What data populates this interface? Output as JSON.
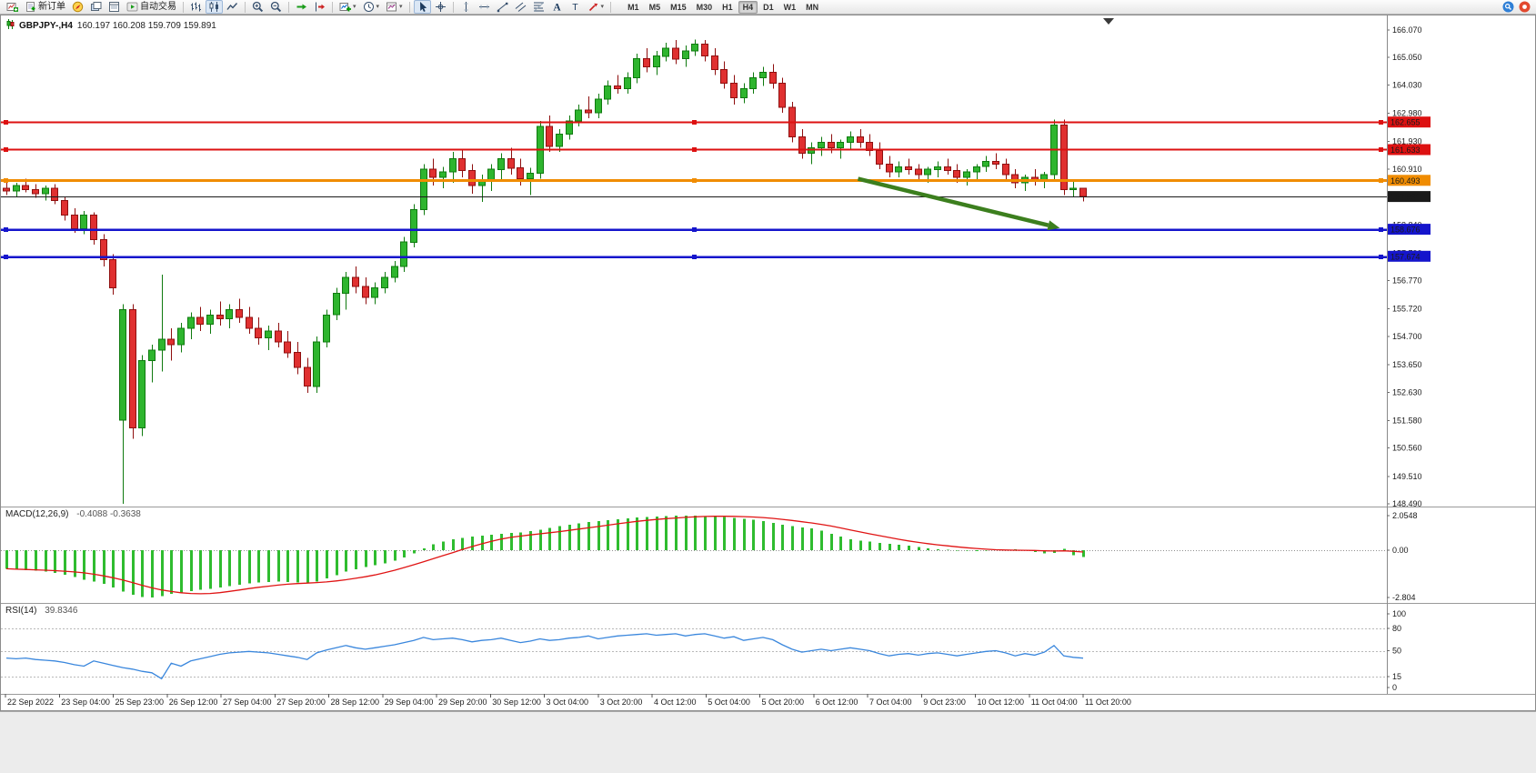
{
  "toolbar": {
    "items": [
      {
        "name": "new-chart-button",
        "icon": "new-chart"
      },
      {
        "name": "new-order-button",
        "icon": "new-order",
        "label": "新订单"
      },
      {
        "name": "metaeditor-button",
        "icon": "compass"
      },
      {
        "name": "profiles-button",
        "icon": "profiles"
      },
      {
        "name": "data-window-button",
        "icon": "data-window"
      },
      {
        "name": "autotrading-button",
        "icon": "autotrading",
        "label": "自动交易"
      },
      {
        "sep": true
      },
      {
        "name": "bar-chart-button",
        "icon": "bars"
      },
      {
        "name": "candlestick-chart-button",
        "icon": "candles",
        "active": true
      },
      {
        "name": "line-chart-button",
        "icon": "line"
      },
      {
        "sep": true
      },
      {
        "name": "zoom-in-button",
        "icon": "zoom-in"
      },
      {
        "name": "zoom-out-button",
        "icon": "zoom-out"
      },
      {
        "sep": true
      },
      {
        "name": "auto-scroll-button",
        "icon": "auto-scroll"
      },
      {
        "name": "chart-shift-button",
        "icon": "chart-shift"
      },
      {
        "sep": true
      },
      {
        "name": "indicators-button",
        "icon": "indicators",
        "caret": true
      },
      {
        "name": "periods-button",
        "icon": "clock",
        "caret": true
      },
      {
        "name": "templates-button",
        "icon": "template",
        "caret": true
      },
      {
        "sep": true
      },
      {
        "name": "cursor-button",
        "icon": "cursor",
        "active": true
      },
      {
        "name": "crosshair-button",
        "icon": "crosshair"
      },
      {
        "sep": true
      },
      {
        "name": "vertical-line-button",
        "icon": "vline"
      },
      {
        "name": "horizontal-line-button",
        "icon": "hline"
      },
      {
        "name": "trendline-button",
        "icon": "trendline"
      },
      {
        "name": "channel-button",
        "icon": "channel"
      },
      {
        "name": "fibonacci-button",
        "icon": "fibo"
      },
      {
        "name": "text-button",
        "icon": "text"
      },
      {
        "name": "label-button",
        "icon": "label"
      },
      {
        "name": "arrows-button",
        "icon": "arrows",
        "caret": true
      },
      {
        "sep": true
      }
    ],
    "timeframes": [
      "M1",
      "M5",
      "M15",
      "M30",
      "H1",
      "H4",
      "D1",
      "W1",
      "MN"
    ],
    "active_timeframe": "H4",
    "right_icons": [
      {
        "name": "search-icon",
        "icon": "search"
      },
      {
        "name": "notifications-icon",
        "icon": "alert"
      }
    ]
  },
  "chart_data": {
    "type": "candlestick",
    "title": "GBPJPY-,H4",
    "ohlc_text": "160.197 160.208 159.709 159.891",
    "current": {
      "open": 160.197,
      "high": 160.208,
      "low": 159.709,
      "close": 159.891
    },
    "colors": {
      "up_fill": "#2eb52e",
      "up_border": "#0f7a0f",
      "down_fill": "#e03030",
      "down_border": "#8f0f0f",
      "arrow": "#3c7f1e"
    },
    "price_axis": {
      "min": 148.49,
      "max": 166.07,
      "labels": [
        "166.070",
        "165.050",
        "164.030",
        "162.980",
        "161.930",
        "160.910",
        "159.860",
        "158.840",
        "157.790",
        "156.770",
        "155.720",
        "154.700",
        "153.650",
        "152.630",
        "151.580",
        "150.560",
        "149.510",
        "148.490"
      ]
    },
    "time_labels": [
      "22 Sep 2022",
      "23 Sep 04:00",
      "25 Sep 23:00",
      "26 Sep 12:00",
      "27 Sep 04:00",
      "27 Sep 20:00",
      "28 Sep 12:00",
      "29 Sep 04:00",
      "29 Sep 20:00",
      "30 Sep 12:00",
      "3 Oct 04:00",
      "3 Oct 20:00",
      "4 Oct 12:00",
      "5 Oct 04:00",
      "5 Oct 20:00",
      "6 Oct 12:00",
      "7 Oct 04:00",
      "9 Oct 23:00",
      "10 Oct 12:00",
      "11 Oct 04:00",
      "11 Oct 20:00"
    ],
    "levels": [
      {
        "price": 162.655,
        "label": "162.655",
        "color": "#dd1111",
        "width": 1.6,
        "handles": true
      },
      {
        "price": 161.633,
        "label": "161.633",
        "color": "#dd1111",
        "width": 1.6,
        "handles": true
      },
      {
        "price": 160.493,
        "label": "160.493",
        "color": "#f08c00",
        "width": 3,
        "handles": true
      },
      {
        "price": 158.676,
        "label": "158.676",
        "color": "#1515cc",
        "width": 2.5,
        "handles": true
      },
      {
        "price": 157.674,
        "label": "157.674",
        "color": "#1515cc",
        "width": 2.5,
        "handles": true
      }
    ],
    "current_price_line": {
      "price": 159.891,
      "label": "159.891",
      "color": "#1a1a1a"
    },
    "arrow": {
      "from": {
        "bar": 87.8,
        "price": 160.55
      },
      "to": {
        "bar": 108.6,
        "price": 158.72
      },
      "color": "#3c7f1e"
    },
    "candles": [
      [
        160.2,
        160.45,
        159.95,
        160.1
      ],
      [
        160.1,
        160.4,
        159.9,
        160.3
      ],
      [
        160.3,
        160.55,
        160.05,
        160.15
      ],
      [
        160.15,
        160.35,
        159.85,
        160.0
      ],
      [
        160.0,
        160.3,
        159.75,
        160.2
      ],
      [
        160.2,
        160.35,
        159.6,
        159.75
      ],
      [
        159.75,
        159.9,
        159.0,
        159.2
      ],
      [
        159.2,
        159.45,
        158.55,
        158.7
      ],
      [
        158.7,
        159.35,
        158.5,
        159.2
      ],
      [
        159.2,
        159.3,
        158.1,
        158.3
      ],
      [
        158.3,
        158.5,
        157.3,
        157.55
      ],
      [
        157.55,
        157.75,
        156.25,
        156.5
      ],
      [
        151.6,
        155.9,
        148.49,
        155.7
      ],
      [
        155.7,
        155.9,
        150.9,
        151.3
      ],
      [
        151.3,
        154.0,
        151.0,
        153.8
      ],
      [
        153.8,
        154.4,
        153.0,
        154.2
      ],
      [
        154.2,
        157.0,
        153.4,
        154.6
      ],
      [
        154.6,
        155.0,
        153.8,
        154.4
      ],
      [
        154.4,
        155.2,
        154.1,
        155.0
      ],
      [
        155.0,
        155.6,
        154.6,
        155.4
      ],
      [
        155.4,
        155.8,
        154.9,
        155.15
      ],
      [
        155.15,
        155.7,
        154.8,
        155.5
      ],
      [
        155.5,
        156.0,
        155.1,
        155.35
      ],
      [
        155.35,
        155.9,
        155.0,
        155.7
      ],
      [
        155.7,
        156.1,
        155.2,
        155.4
      ],
      [
        155.4,
        155.8,
        154.8,
        155.0
      ],
      [
        155.0,
        155.4,
        154.4,
        154.65
      ],
      [
        154.65,
        155.1,
        154.2,
        154.9
      ],
      [
        154.9,
        155.2,
        154.3,
        154.5
      ],
      [
        154.5,
        154.9,
        153.9,
        154.1
      ],
      [
        154.1,
        154.5,
        153.3,
        153.55
      ],
      [
        153.55,
        153.9,
        152.6,
        152.85
      ],
      [
        152.85,
        154.7,
        152.6,
        154.5
      ],
      [
        154.5,
        155.7,
        154.3,
        155.5
      ],
      [
        155.5,
        156.5,
        155.3,
        156.3
      ],
      [
        156.3,
        157.1,
        155.7,
        156.9
      ],
      [
        156.9,
        157.3,
        156.3,
        156.55
      ],
      [
        156.55,
        156.9,
        155.9,
        156.15
      ],
      [
        156.15,
        156.7,
        155.9,
        156.5
      ],
      [
        156.5,
        157.1,
        156.3,
        156.9
      ],
      [
        156.9,
        157.5,
        156.7,
        157.3
      ],
      [
        157.3,
        158.4,
        157.1,
        158.2
      ],
      [
        158.2,
        159.6,
        158.0,
        159.4
      ],
      [
        159.4,
        161.1,
        159.2,
        160.9
      ],
      [
        160.9,
        161.3,
        160.3,
        160.6
      ],
      [
        160.6,
        161.0,
        160.2,
        160.8
      ],
      [
        160.8,
        161.55,
        160.4,
        161.3
      ],
      [
        161.3,
        161.6,
        160.6,
        160.85
      ],
      [
        160.85,
        161.1,
        160.0,
        160.3
      ],
      [
        160.3,
        160.7,
        159.7,
        160.5
      ],
      [
        160.5,
        161.1,
        160.1,
        160.9
      ],
      [
        160.9,
        161.5,
        160.5,
        161.3
      ],
      [
        161.3,
        161.7,
        160.7,
        160.95
      ],
      [
        160.95,
        161.3,
        160.3,
        160.55
      ],
      [
        160.55,
        160.95,
        159.95,
        160.75
      ],
      [
        160.75,
        162.7,
        160.55,
        162.5
      ],
      [
        162.5,
        162.9,
        161.55,
        161.75
      ],
      [
        161.75,
        162.4,
        161.55,
        162.2
      ],
      [
        162.2,
        162.9,
        162.0,
        162.7
      ],
      [
        162.7,
        163.3,
        162.5,
        163.1
      ],
      [
        163.1,
        163.6,
        162.8,
        163.0
      ],
      [
        163.0,
        163.7,
        162.8,
        163.5
      ],
      [
        163.5,
        164.2,
        163.3,
        164.0
      ],
      [
        164.0,
        164.4,
        163.7,
        163.9
      ],
      [
        163.9,
        164.5,
        163.7,
        164.3
      ],
      [
        164.3,
        165.2,
        164.1,
        165.0
      ],
      [
        165.0,
        165.4,
        164.5,
        164.7
      ],
      [
        164.7,
        165.3,
        164.4,
        165.1
      ],
      [
        165.1,
        165.6,
        164.9,
        165.4
      ],
      [
        165.4,
        165.7,
        164.8,
        165.0
      ],
      [
        165.0,
        165.5,
        164.7,
        165.3
      ],
      [
        165.3,
        165.72,
        165.1,
        165.55
      ],
      [
        165.55,
        165.7,
        164.9,
        165.1
      ],
      [
        165.1,
        165.4,
        164.4,
        164.6
      ],
      [
        164.6,
        164.9,
        163.9,
        164.1
      ],
      [
        164.1,
        164.4,
        163.3,
        163.55
      ],
      [
        163.55,
        164.1,
        163.35,
        163.9
      ],
      [
        163.9,
        164.5,
        163.7,
        164.3
      ],
      [
        164.3,
        164.7,
        164.0,
        164.5
      ],
      [
        164.5,
        164.8,
        163.9,
        164.1
      ],
      [
        164.1,
        164.3,
        163.0,
        163.2
      ],
      [
        163.2,
        163.4,
        161.9,
        162.1
      ],
      [
        162.1,
        162.4,
        161.3,
        161.5
      ],
      [
        161.5,
        161.9,
        161.1,
        161.7
      ],
      [
        161.7,
        162.1,
        161.4,
        161.9
      ],
      [
        161.9,
        162.2,
        161.5,
        161.7
      ],
      [
        161.7,
        162.0,
        161.3,
        161.9
      ],
      [
        161.9,
        162.3,
        161.6,
        162.1
      ],
      [
        162.1,
        162.4,
        161.7,
        161.9
      ],
      [
        161.9,
        162.2,
        161.4,
        161.6
      ],
      [
        161.6,
        161.9,
        160.9,
        161.1
      ],
      [
        161.1,
        161.4,
        160.6,
        160.8
      ],
      [
        160.8,
        161.2,
        160.6,
        161.0
      ],
      [
        161.0,
        161.3,
        160.7,
        160.9
      ],
      [
        160.9,
        161.1,
        160.5,
        160.7
      ],
      [
        160.7,
        161.0,
        160.4,
        160.9
      ],
      [
        160.9,
        161.2,
        160.6,
        161.0
      ],
      [
        161.0,
        161.3,
        160.7,
        160.85
      ],
      [
        160.85,
        161.1,
        160.4,
        160.6
      ],
      [
        160.6,
        160.9,
        160.3,
        160.8
      ],
      [
        160.8,
        161.1,
        160.5,
        161.0
      ],
      [
        161.0,
        161.4,
        160.8,
        161.2
      ],
      [
        161.2,
        161.5,
        160.9,
        161.1
      ],
      [
        161.1,
        161.3,
        160.5,
        160.7
      ],
      [
        160.7,
        160.9,
        160.2,
        160.4
      ],
      [
        160.4,
        160.7,
        160.1,
        160.6
      ],
      [
        160.6,
        160.9,
        160.3,
        160.5
      ],
      [
        160.5,
        160.8,
        160.2,
        160.7
      ],
      [
        160.7,
        162.75,
        160.5,
        162.55
      ],
      [
        162.55,
        162.75,
        159.95,
        160.15
      ],
      [
        160.15,
        160.45,
        159.9,
        160.2
      ],
      [
        160.197,
        160.208,
        159.709,
        159.891
      ]
    ],
    "indicators": {
      "macd": {
        "title": "MACD(12,26,9)",
        "values_text": "-0.4088 -0.3638",
        "main": -0.4088,
        "signal": -0.3638,
        "hist_color": "#2fbc2f",
        "signal_color": "#e01414",
        "scale_labels": [
          {
            "v": 2.0548,
            "text": "2.0548"
          },
          {
            "v": 0,
            "text": "0.00"
          },
          {
            "v": -2.804,
            "text": "-2.804"
          }
        ],
        "histogram": [
          -1.1,
          -1.15,
          -1.18,
          -1.22,
          -1.28,
          -1.35,
          -1.45,
          -1.6,
          -1.75,
          -1.85,
          -2.0,
          -2.2,
          -2.45,
          -2.65,
          -2.78,
          -2.8,
          -2.72,
          -2.6,
          -2.5,
          -2.42,
          -2.35,
          -2.28,
          -2.2,
          -2.12,
          -2.05,
          -1.98,
          -1.92,
          -1.88,
          -1.86,
          -1.88,
          -1.92,
          -1.95,
          -1.85,
          -1.68,
          -1.48,
          -1.28,
          -1.12,
          -1.0,
          -0.9,
          -0.78,
          -0.62,
          -0.42,
          -0.18,
          0.1,
          0.35,
          0.52,
          0.64,
          0.74,
          0.8,
          0.86,
          0.92,
          0.98,
          1.02,
          1.06,
          1.12,
          1.22,
          1.32,
          1.42,
          1.52,
          1.6,
          1.66,
          1.72,
          1.78,
          1.84,
          1.89,
          1.94,
          1.97,
          2.0,
          2.02,
          2.04,
          2.05,
          2.05,
          2.03,
          2.0,
          1.96,
          1.91,
          1.86,
          1.81,
          1.73,
          1.63,
          1.52,
          1.43,
          1.36,
          1.3,
          1.16,
          0.98,
          0.8,
          0.66,
          0.56,
          0.5,
          0.44,
          0.38,
          0.33,
          0.28,
          0.2,
          0.12,
          0.06,
          0.02,
          -0.02,
          -0.04,
          -0.05,
          -0.04,
          0.0,
          0.04,
          0.05,
          0.0,
          -0.1,
          -0.2,
          -0.15,
          0.08,
          -0.3,
          -0.41
        ]
      },
      "rsi": {
        "title": "RSI(14)",
        "value_text": "39.8346",
        "value": 39.8346,
        "line_color": "#3a87dd",
        "scale_labels": [
          "100",
          "80",
          "50",
          "15",
          "0"
        ],
        "level_lines": [
          80,
          50,
          15
        ],
        "values": [
          40,
          39,
          40,
          38,
          37,
          36,
          34,
          31,
          29,
          36,
          33,
          30,
          27,
          25,
          22,
          20,
          12,
          33,
          29,
          36,
          39,
          42,
          45,
          47,
          48,
          49,
          48,
          47,
          45,
          43,
          41,
          38,
          47,
          51,
          54,
          57,
          54,
          52,
          54,
          56,
          58,
          61,
          64,
          68,
          65,
          66,
          67,
          65,
          62,
          64,
          65,
          67,
          64,
          61,
          63,
          66,
          64,
          65,
          67,
          68,
          70,
          66,
          68,
          70,
          71,
          72,
          73,
          71,
          72,
          73,
          70,
          72,
          73,
          70,
          67,
          69,
          64,
          66,
          68,
          65,
          58,
          52,
          48,
          50,
          52,
          50,
          52,
          54,
          52,
          50,
          46,
          43,
          45,
          46,
          44,
          46,
          47,
          45,
          43,
          45,
          47,
          49,
          50,
          47,
          43,
          46,
          44,
          48,
          57,
          43,
          41,
          39.83
        ]
      }
    }
  }
}
